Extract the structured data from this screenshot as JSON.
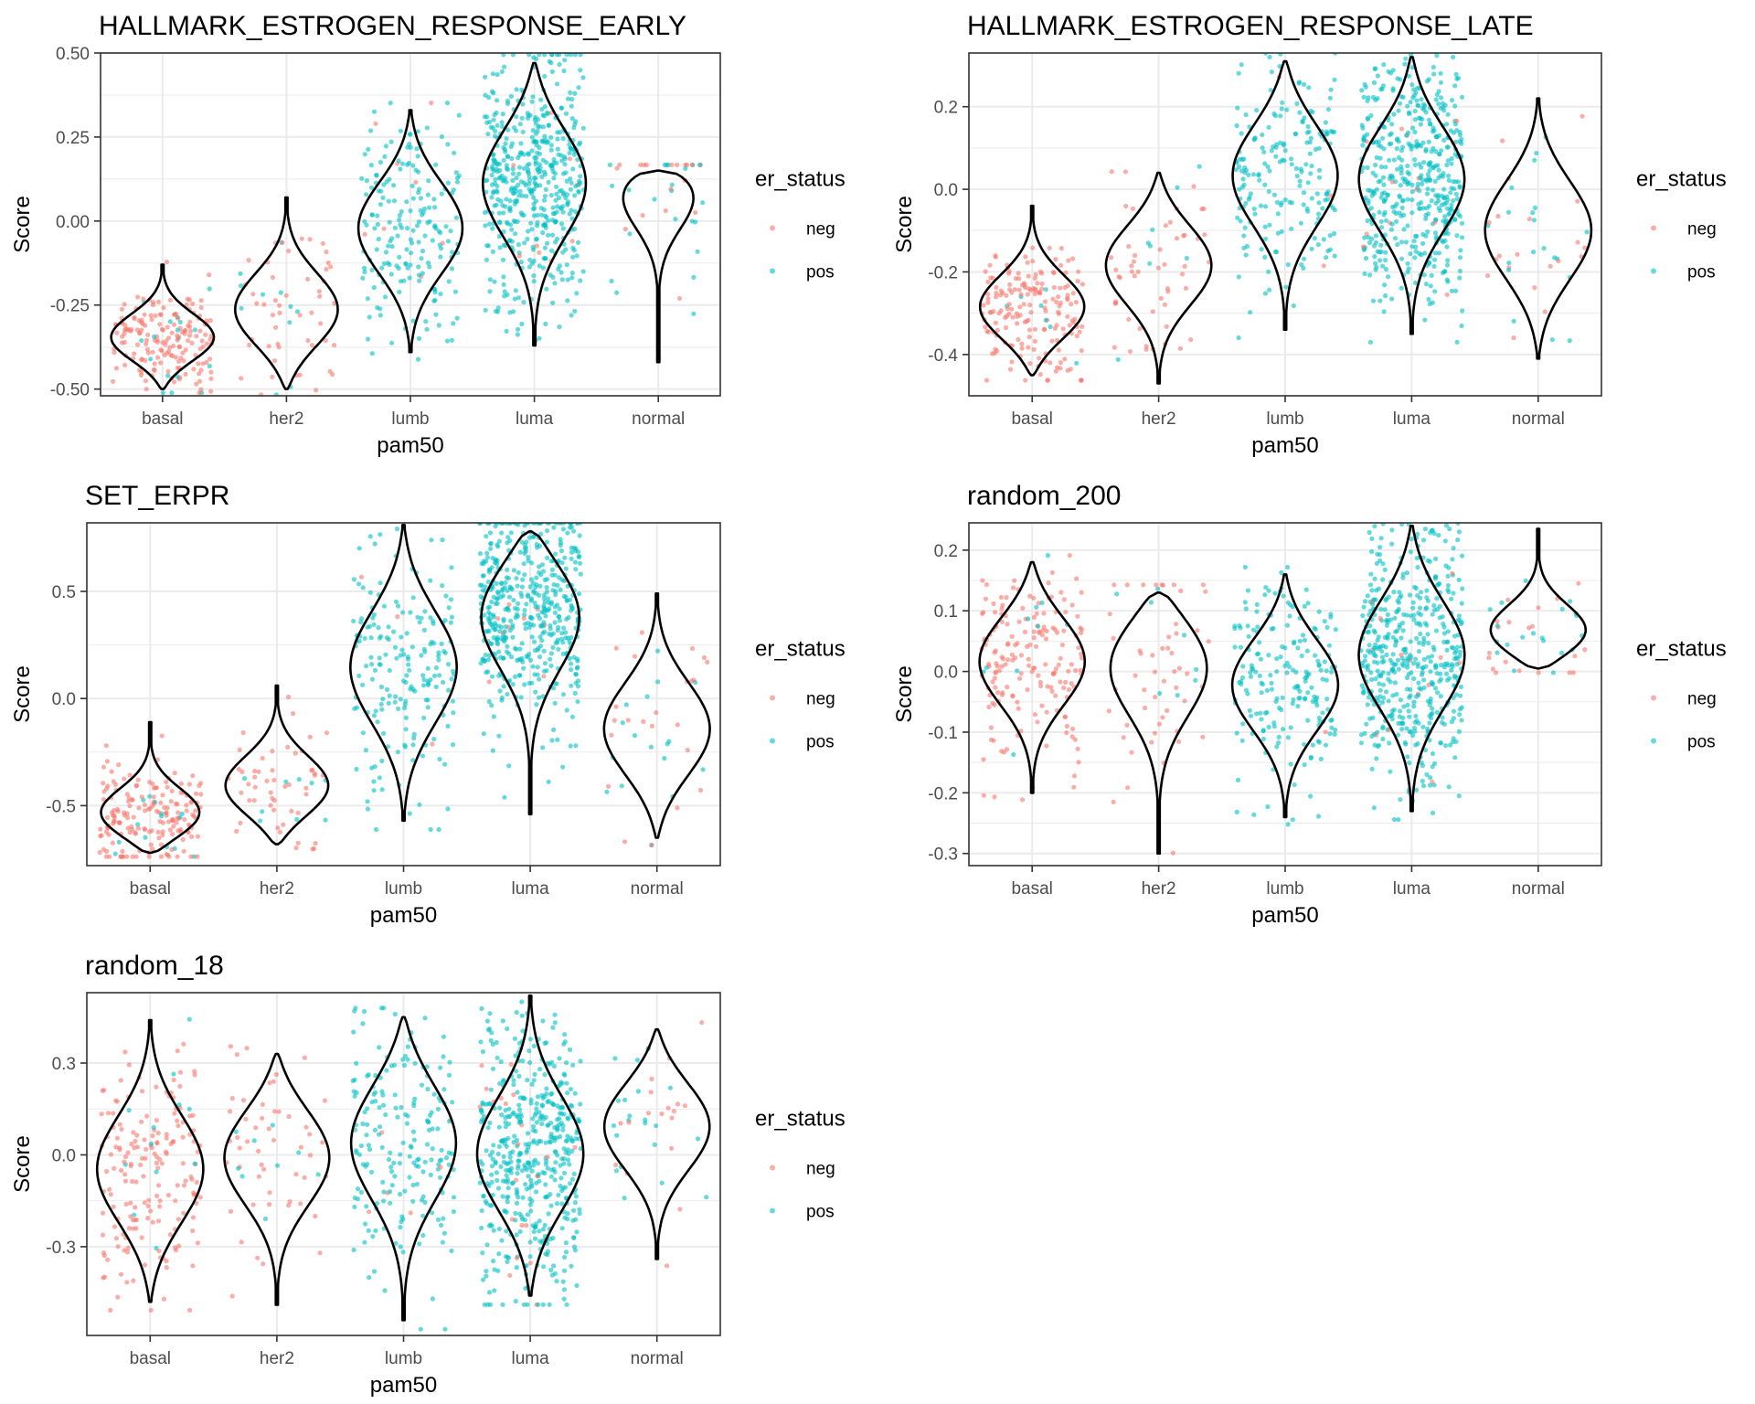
{
  "colors": {
    "neg": "#F8766D",
    "pos": "#00BFC4",
    "violin": "#000000",
    "grid": "#ebebeb",
    "panel_border": "#333333"
  },
  "chart_data": [
    {
      "type": "violin",
      "title": "HALLMARK_ESTROGEN_RESPONSE_EARLY",
      "xlabel": "pam50",
      "ylabel": "Score",
      "categories": [
        "basal",
        "her2",
        "lumb",
        "luma",
        "normal"
      ],
      "yticks": [
        -0.5,
        -0.25,
        0.0,
        0.25,
        0.5
      ],
      "ytick_labels": [
        "-0.50",
        "-0.25",
        "0.00",
        "0.25",
        "0.50"
      ],
      "ylim": [
        -0.52,
        0.5
      ],
      "groups": [
        {
          "category": "basal",
          "min": -0.5,
          "max": -0.13,
          "mode": -0.35,
          "n": 190,
          "pos_frac": 0.06
        },
        {
          "category": "her2",
          "min": -0.5,
          "max": 0.07,
          "mode": -0.27,
          "n": 60,
          "pos_frac": 0.15
        },
        {
          "category": "lumb",
          "min": -0.39,
          "max": 0.33,
          "mode": -0.02,
          "n": 200,
          "pos_frac": 0.98
        },
        {
          "category": "luma",
          "min": -0.37,
          "max": 0.47,
          "mode": 0.12,
          "n": 520,
          "pos_frac": 0.97
        },
        {
          "category": "normal",
          "min": -0.42,
          "max": 0.15,
          "mode": 0.12,
          "n": 40,
          "pos_frac": 0.55
        }
      ],
      "legend": {
        "title": "er_status",
        "entries": [
          "neg",
          "pos"
        ]
      }
    },
    {
      "type": "violin",
      "title": "HALLMARK_ESTROGEN_RESPONSE_LATE",
      "xlabel": "pam50",
      "ylabel": "Score",
      "categories": [
        "basal",
        "her2",
        "lumb",
        "luma",
        "normal"
      ],
      "yticks": [
        -0.4,
        -0.2,
        0.0,
        0.2
      ],
      "ytick_labels": [
        "-0.4",
        "-0.2",
        "0.0",
        "0.2"
      ],
      "ylim": [
        -0.5,
        0.33
      ],
      "groups": [
        {
          "category": "basal",
          "min": -0.45,
          "max": -0.04,
          "mode": -0.29,
          "n": 190,
          "pos_frac": 0.06
        },
        {
          "category": "her2",
          "min": -0.47,
          "max": 0.04,
          "mode": -0.18,
          "n": 60,
          "pos_frac": 0.15
        },
        {
          "category": "lumb",
          "min": -0.34,
          "max": 0.31,
          "mode": 0.04,
          "n": 200,
          "pos_frac": 0.98
        },
        {
          "category": "luma",
          "min": -0.35,
          "max": 0.32,
          "mode": 0.03,
          "n": 520,
          "pos_frac": 0.97
        },
        {
          "category": "normal",
          "min": -0.41,
          "max": 0.22,
          "mode": -0.1,
          "n": 40,
          "pos_frac": 0.55
        }
      ],
      "legend": {
        "title": "er_status",
        "entries": [
          "neg",
          "pos"
        ]
      }
    },
    {
      "type": "violin",
      "title": "SET_ERPR",
      "xlabel": "pam50",
      "ylabel": "Score",
      "categories": [
        "basal",
        "her2",
        "lumb",
        "luma",
        "normal"
      ],
      "yticks": [
        -0.5,
        0.0,
        0.5
      ],
      "ytick_labels": [
        "-0.5",
        "0.0",
        "0.5"
      ],
      "ylim": [
        -0.78,
        0.82
      ],
      "groups": [
        {
          "category": "basal",
          "min": -0.72,
          "max": -0.11,
          "mode": -0.55,
          "n": 190,
          "pos_frac": 0.06
        },
        {
          "category": "her2",
          "min": -0.68,
          "max": 0.06,
          "mode": -0.42,
          "n": 60,
          "pos_frac": 0.15
        },
        {
          "category": "lumb",
          "min": -0.57,
          "max": 0.81,
          "mode": 0.15,
          "n": 200,
          "pos_frac": 0.98
        },
        {
          "category": "luma",
          "min": -0.54,
          "max": 0.78,
          "mode": 0.42,
          "n": 520,
          "pos_frac": 0.97
        },
        {
          "category": "normal",
          "min": -0.65,
          "max": 0.49,
          "mode": -0.15,
          "n": 40,
          "pos_frac": 0.55
        }
      ],
      "legend": {
        "title": "er_status",
        "entries": [
          "neg",
          "pos"
        ]
      }
    },
    {
      "type": "violin",
      "title": "random_200",
      "xlabel": "pam50",
      "ylabel": "Score",
      "categories": [
        "basal",
        "her2",
        "lumb",
        "luma",
        "normal"
      ],
      "yticks": [
        -0.3,
        -0.2,
        -0.1,
        0.0,
        0.1,
        0.2
      ],
      "ytick_labels": [
        "-0.3",
        "-0.2",
        "-0.1",
        "0.0",
        "0.1",
        "0.2"
      ],
      "ylim": [
        -0.32,
        0.245
      ],
      "groups": [
        {
          "category": "basal",
          "min": -0.2,
          "max": 0.18,
          "mode": 0.02,
          "n": 190,
          "pos_frac": 0.06
        },
        {
          "category": "her2",
          "min": -0.3,
          "max": 0.13,
          "mode": 0.02,
          "n": 60,
          "pos_frac": 0.15
        },
        {
          "category": "lumb",
          "min": -0.24,
          "max": 0.16,
          "mode": -0.02,
          "n": 200,
          "pos_frac": 0.98
        },
        {
          "category": "luma",
          "min": -0.23,
          "max": 0.24,
          "mode": 0.03,
          "n": 520,
          "pos_frac": 0.97
        },
        {
          "category": "normal",
          "min": 0.005,
          "max": 0.235,
          "mode": 0.06,
          "n": 40,
          "pos_frac": 0.55
        }
      ],
      "legend": {
        "title": "er_status",
        "entries": [
          "neg",
          "pos"
        ]
      }
    },
    {
      "type": "violin",
      "title": "random_18",
      "xlabel": "pam50",
      "ylabel": "Score",
      "categories": [
        "basal",
        "her2",
        "lumb",
        "luma",
        "normal"
      ],
      "yticks": [
        -0.3,
        0.0,
        0.3
      ],
      "ytick_labels": [
        "-0.3",
        "0.0",
        "0.3"
      ],
      "ylim": [
        -0.59,
        0.53
      ],
      "groups": [
        {
          "category": "basal",
          "min": -0.48,
          "max": 0.44,
          "mode": -0.05,
          "n": 190,
          "pos_frac": 0.06
        },
        {
          "category": "her2",
          "min": -0.49,
          "max": 0.33,
          "mode": 0.0,
          "n": 60,
          "pos_frac": 0.15
        },
        {
          "category": "lumb",
          "min": -0.54,
          "max": 0.45,
          "mode": 0.05,
          "n": 200,
          "pos_frac": 0.98
        },
        {
          "category": "luma",
          "min": -0.46,
          "max": 0.52,
          "mode": 0.0,
          "n": 520,
          "pos_frac": 0.97
        },
        {
          "category": "normal",
          "min": -0.34,
          "max": 0.41,
          "mode": 0.1,
          "n": 40,
          "pos_frac": 0.55
        }
      ],
      "legend": {
        "title": "er_status",
        "entries": [
          "neg",
          "pos"
        ]
      }
    }
  ]
}
